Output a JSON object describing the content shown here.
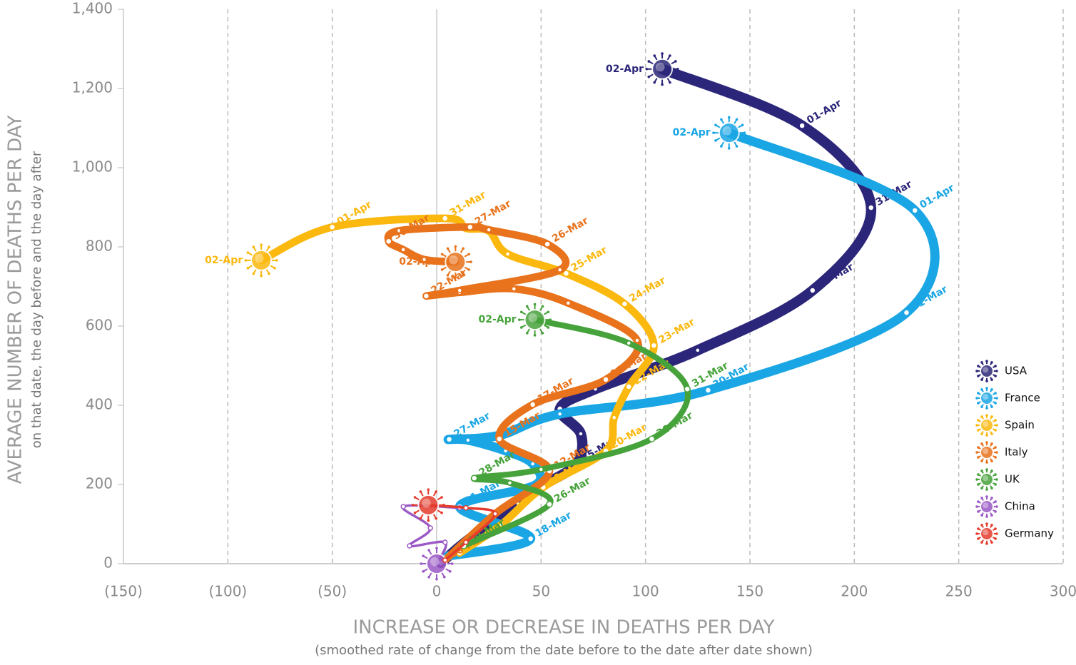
{
  "chart_data": {
    "type": "line",
    "xlabel": "INCREASE OR DECREASE IN DEATHS PER DAY",
    "xlabel_sub": "(smoothed rate of change from the date before to the date after date shown)",
    "ylabel": "AVERAGE NUMBER OF DEATHS PER DAY",
    "ylabel_sub": "on that date, the day before and the day after",
    "xlim": [
      -150,
      300
    ],
    "xticks": [
      {
        "value": -150,
        "label": "(150)"
      },
      {
        "value": -100,
        "label": "(100)"
      },
      {
        "value": -50,
        "label": "(50)"
      },
      0,
      50,
      100,
      150,
      200,
      250,
      300
    ],
    "ylim": [
      0,
      1400
    ],
    "yticks": [
      0,
      200,
      400,
      600,
      800,
      {
        "value": 1000,
        "label": "1,000"
      },
      {
        "value": 1200,
        "label": "1,200"
      },
      {
        "value": 1400,
        "label": "1,400"
      }
    ],
    "grid": true,
    "legend": "right",
    "series": [
      {
        "name": "USA",
        "color": "#2b2679",
        "x": [
          2,
          15,
          39,
          51,
          67,
          69,
          59,
          76,
          125,
          180,
          208,
          175,
          108
        ],
        "values": [
          2,
          60,
          151,
          198,
          252,
          328,
          391,
          441,
          539,
          690,
          899,
          1106,
          1249
        ],
        "labels": [
          "09-Mar",
          null,
          null,
          null,
          "25-Mar",
          null,
          "26-Mar",
          null,
          null,
          "30-Mar",
          "31-Mar",
          "01-Apr",
          "02-Apr"
        ]
      },
      {
        "name": "France",
        "color": "#1aa6e4",
        "x": [
          4,
          45,
          11,
          47,
          46,
          33,
          15,
          6,
          30,
          59,
          130,
          225,
          229,
          140
        ],
        "values": [
          18,
          63,
          144,
          198,
          252,
          285,
          312,
          314,
          324,
          378,
          438,
          634,
          892,
          1088
        ],
        "labels": [
          null,
          "18-Mar",
          "21-Mar",
          null,
          null,
          null,
          null,
          "27-Mar",
          null,
          null,
          "30-Mar",
          "31-Mar",
          "01-Apr",
          "02-Apr"
        ]
      },
      {
        "name": "Spain",
        "color": "#fbb80e",
        "x": [
          11,
          31,
          51,
          81,
          85,
          92,
          104,
          90,
          62,
          34,
          25,
          14,
          4,
          -50,
          -84
        ],
        "values": [
          27,
          99,
          193,
          285,
          369,
          447,
          551,
          656,
          733,
          782,
          840,
          847,
          872,
          850,
          766
        ],
        "labels": [
          "27-Mar",
          null,
          "19-Mar",
          "20-Mar",
          null,
          "22-Mar",
          "23-Mar",
          "24-Mar",
          "25-Mar",
          null,
          null,
          null,
          "31-Mar",
          "01-Apr",
          "02-Apr"
        ]
      },
      {
        "name": "Italy",
        "color": "#e8731c",
        "x": [
          4,
          28,
          54,
          30,
          46,
          81,
          96,
          63,
          37,
          11,
          -5,
          11,
          59,
          53,
          25,
          16,
          -18,
          -23,
          -16,
          -6,
          9
        ],
        "values": [
          9,
          126,
          234,
          315,
          402,
          465,
          564,
          658,
          694,
          685,
          676,
          690,
          742,
          807,
          843,
          850,
          841,
          814,
          793,
          768,
          762
        ],
        "labels": [
          "06-Mar",
          null,
          "12-Mar",
          "15-Mar",
          "17-Mar",
          "18-Mar",
          null,
          null,
          null,
          null,
          "22-Mar",
          null,
          null,
          "26-Mar",
          null,
          "27-Mar",
          null,
          "30-Mar",
          null,
          null,
          "02-Apr"
        ]
      },
      {
        "name": "UK",
        "color": "#46a23a",
        "x": [
          13,
          54,
          35,
          18,
          50,
          103,
          120,
          92,
          47
        ],
        "values": [
          45,
          150,
          204,
          216,
          238,
          315,
          441,
          557,
          616
        ],
        "labels": [
          "19-Mar",
          "26-Mar",
          null,
          "28-Mar",
          null,
          "30-Mar",
          "31-Mar",
          null,
          "02-Apr"
        ]
      },
      {
        "name": "China",
        "color": "#9b59c6",
        "x": [
          11,
          -16,
          -3,
          -13,
          4,
          0
        ],
        "values": [
          141,
          144,
          90,
          45,
          54,
          0
        ],
        "labels": [
          null,
          null,
          null,
          null,
          null,
          null
        ]
      },
      {
        "name": "Germany",
        "color": "#e53b2c",
        "x": [
          4,
          14,
          28,
          14,
          -4
        ],
        "values": [
          9,
          54,
          126,
          141,
          148
        ],
        "labels": [
          null,
          null,
          null,
          null,
          null
        ]
      }
    ]
  }
}
